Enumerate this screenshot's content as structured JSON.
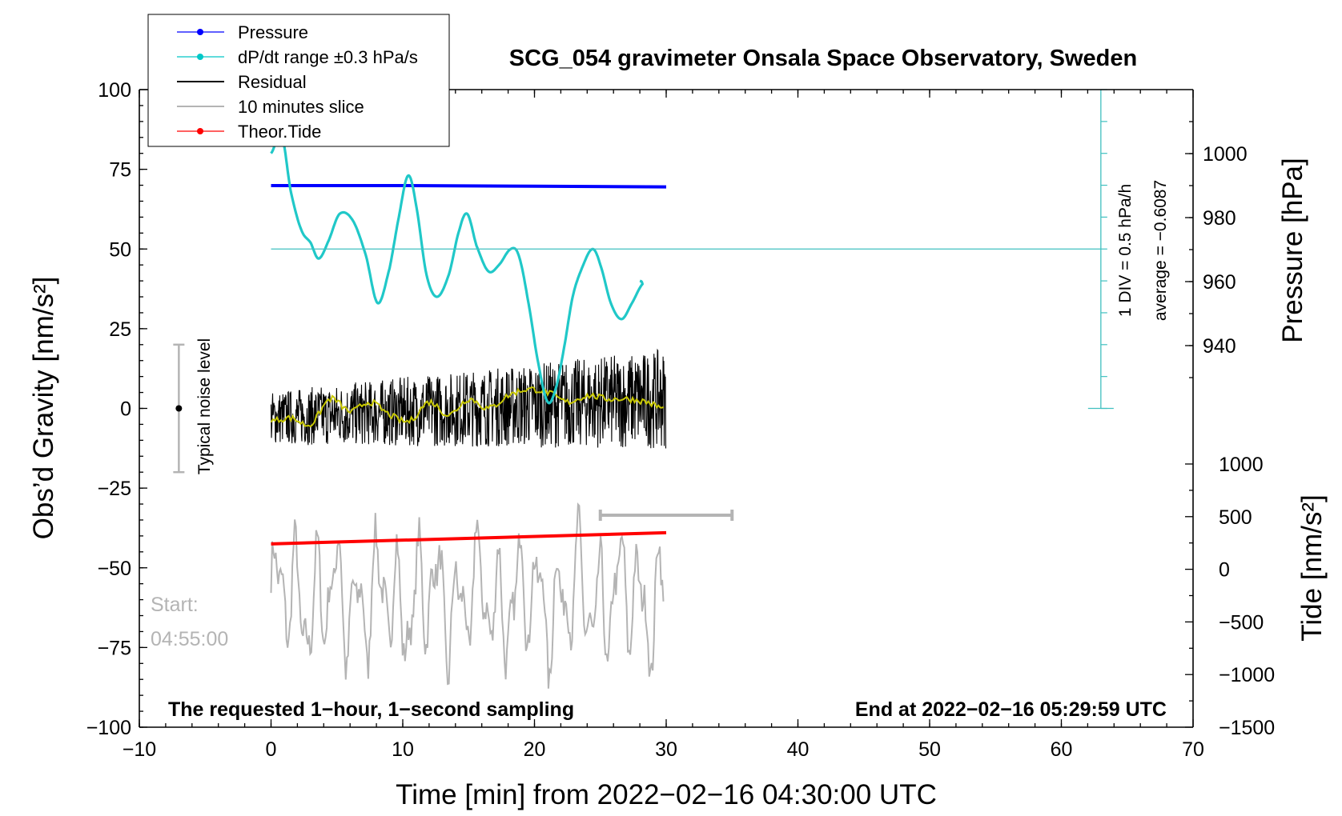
{
  "chart_data": {
    "type": "line",
    "title": "SCG_054 gravimeter Onsala Space Observatory, Sweden",
    "xlabel": "Time [min] from 2022−02−16 04:30:00 UTC",
    "ylabel_left": "Obs’d Gravity [nm/s²]",
    "ylabel_right_pressure": "Pressure [hPa]",
    "ylabel_right_tide": "Tide [nm/s²]",
    "xlim": [
      -10,
      70
    ],
    "ylim": [
      -100,
      100
    ],
    "pressure_lim": [
      920,
      1020
    ],
    "tide_lim": [
      -1500,
      1500
    ],
    "x_ticks": [
      {
        "v": -10,
        "label": "−10"
      },
      {
        "v": 0,
        "label": "0"
      },
      {
        "v": 10,
        "label": "10"
      },
      {
        "v": 20,
        "label": "20"
      },
      {
        "v": 30,
        "label": "30"
      },
      {
        "v": 40,
        "label": "40"
      },
      {
        "v": 50,
        "label": "50"
      },
      {
        "v": 60,
        "label": "60"
      },
      {
        "v": 70,
        "label": "70"
      }
    ],
    "y_ticks": [
      {
        "v": 100,
        "label": "100"
      },
      {
        "v": 75,
        "label": "75"
      },
      {
        "v": 50,
        "label": "50"
      },
      {
        "v": 25,
        "label": "25"
      },
      {
        "v": 0,
        "label": "0"
      },
      {
        "v": -25,
        "label": "−25"
      },
      {
        "v": -50,
        "label": "−50"
      },
      {
        "v": -75,
        "label": "−75"
      },
      {
        "v": -100,
        "label": "−100"
      }
    ],
    "pressure_ticks": [
      {
        "v": 1000,
        "label": "1000"
      },
      {
        "v": 980,
        "label": "980"
      },
      {
        "v": 960,
        "label": "960"
      },
      {
        "v": 940,
        "label": "940"
      }
    ],
    "tide_ticks": [
      {
        "v": 1000,
        "label": "1000"
      },
      {
        "v": 500,
        "label": "500"
      },
      {
        "v": 0,
        "label": "0"
      },
      {
        "v": -500,
        "label": "−500"
      },
      {
        "v": -1000,
        "label": "−1000"
      },
      {
        "v": -1500,
        "label": "−1500"
      }
    ],
    "legend": [
      {
        "name": "Pressure",
        "color": "#0000ff",
        "marker": true
      },
      {
        "name": "dP/dt range ±0.3 hPa/s",
        "color": "#00c8c8",
        "marker": true
      },
      {
        "name": "Residual",
        "color": "#000000",
        "marker": false
      },
      {
        "name": "10 minutes slice",
        "color": "#b4b4b4",
        "marker": false
      },
      {
        "name": "Theor.Tide",
        "color": "#ff0000",
        "marker": true
      }
    ],
    "series": [
      {
        "name": "Pressure",
        "color": "#0000ff",
        "axis": "pressure",
        "x": [
          0,
          10,
          20,
          30
        ],
        "y": [
          990.0,
          990.0,
          989.8,
          989.6
        ]
      },
      {
        "name": "dP/dt",
        "color": "#20c8c8",
        "axis": "left",
        "x": [
          0,
          0.8,
          1.5,
          2.3,
          3.0,
          3.6,
          4.3,
          5.2,
          6.2,
          7.2,
          8.1,
          9.0,
          9.7,
          10.4,
          11.0,
          11.8,
          12.6,
          13.5,
          14.3,
          14.9,
          15.6,
          16.5,
          17.3,
          18.2,
          18.8,
          19.5,
          20.3,
          21.0,
          21.6,
          22.2,
          22.9,
          23.6,
          24.4,
          25.0,
          25.8,
          26.6,
          27.4,
          28.2,
          28.0
        ],
        "y": [
          80,
          86,
          68,
          56,
          52,
          47,
          52,
          61,
          59,
          48,
          33,
          44,
          60,
          73,
          64,
          42,
          35,
          42,
          56,
          61,
          51,
          43,
          45,
          50,
          48,
          34,
          14,
          2,
          6,
          18,
          35,
          44,
          50,
          45,
          33,
          28,
          33,
          39,
          40
        ]
      },
      {
        "name": "Residual",
        "color": "#000000",
        "axis": "left",
        "x": [
          0,
          30
        ],
        "y": [
          0,
          0
        ],
        "amplitude": 12
      },
      {
        "name": "Residual smoothed",
        "color": "#c8c800",
        "axis": "left",
        "x": [
          0,
          1.5,
          3,
          4.5,
          6,
          7.5,
          9,
          10.5,
          12,
          13.5,
          15,
          16.5,
          18,
          19.5,
          21,
          22.5,
          24,
          25.5,
          27,
          28.5,
          29.8
        ],
        "y": [
          -4,
          -3,
          -5,
          3,
          -1,
          2,
          -2,
          -4,
          2,
          -2,
          3,
          0,
          4,
          6,
          5,
          2,
          4,
          3,
          3,
          2,
          0
        ]
      },
      {
        "name": "10 minutes slice",
        "color": "#b4b4b4",
        "axis": "left",
        "x": [
          0,
          30
        ],
        "y": [
          -60,
          -60
        ],
        "amplitude": 22
      },
      {
        "name": "Theor.Tide",
        "color": "#ff0000",
        "axis": "left",
        "x": [
          0,
          30
        ],
        "y": [
          -42.5,
          -39.0
        ]
      }
    ],
    "average_line": {
      "y": 50,
      "x_start": 0,
      "x_end": 63
    },
    "pressure_scale": {
      "label": "1 DIV = 0.5 hPa/h",
      "average": "average = −0.6087",
      "x": 63,
      "y_top": 100,
      "y_bottom": 0
    },
    "noise_level": {
      "label": "Typical noise level",
      "x": -7,
      "center": 0,
      "range": [
        -20,
        20
      ]
    },
    "slice_bar": {
      "x_start": 25,
      "x_end": 35,
      "y": -33.5
    },
    "annotations": {
      "start_label": "Start:",
      "start_time": "04:55:00",
      "note_left": "The requested 1−hour, 1−second sampling",
      "note_right": "End at 2022−02−16 05:29:59 UTC"
    }
  }
}
